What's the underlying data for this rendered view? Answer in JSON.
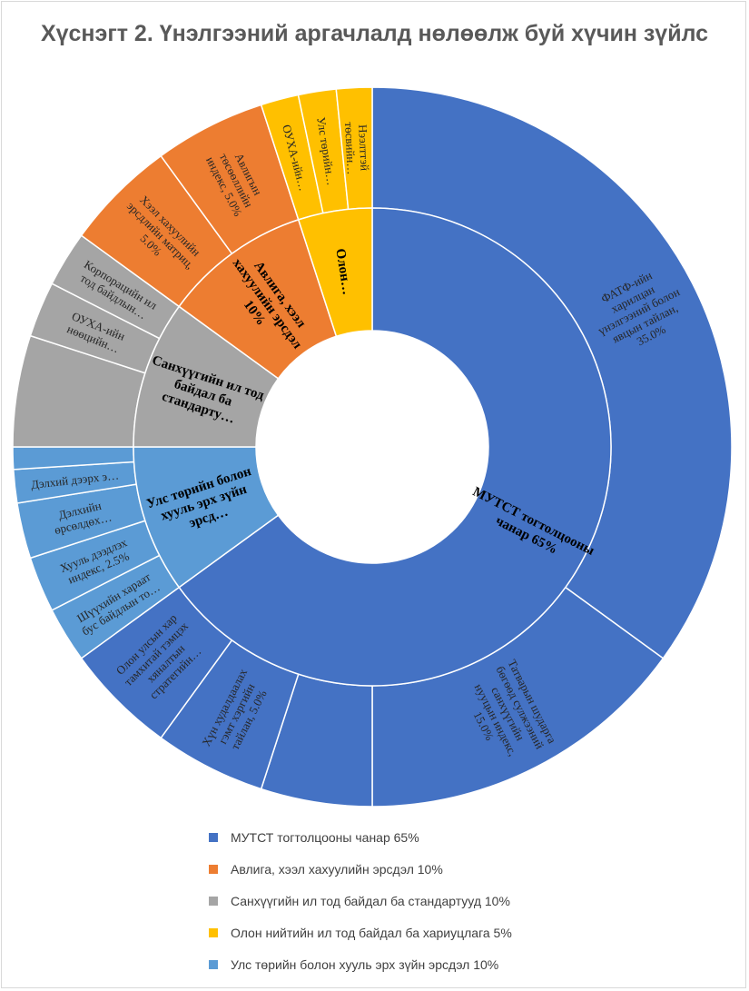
{
  "chart_data": {
    "type": "sunburst",
    "title": "Хүснэгт 2. Үнэлгээний аргачлалд нөлөөлж буй хүчин зүйлс",
    "inner": [
      {
        "label": "МУТСТ тогтолцооны чанар 65%",
        "value": 65,
        "color": "#4472c4"
      },
      {
        "label": "Улс төрийн болон хууль эрх зүйн эрсд…",
        "value": 10,
        "color": "#5b9bd5"
      },
      {
        "label": "Санхүүгийн ил тод байдал ба стандарту…",
        "value": 10,
        "color": "#a5a5a5"
      },
      {
        "label": "Авлига, хээл хахуулийн эрсдэл 10%",
        "value": 10,
        "color": "#ed7d31"
      },
      {
        "label": "Олон…",
        "value": 5,
        "color": "#ffc000"
      }
    ],
    "outer": [
      {
        "label": "ФАТФ-ийн харилцан үнэлгээний болон явцын тайлан, 35.0%",
        "value": 35,
        "color": "#4472c4"
      },
      {
        "label": "Татварын шударга бөгөөд сулжээний санхүүгийн нууцын индекс, 15.0%",
        "value": 15,
        "color": "#4472c4"
      },
      {
        "label": "",
        "value": 5,
        "color": "#4472c4"
      },
      {
        "label": "Хүн худалдаалах гэмт хэргийн тайлан, 5.0%",
        "value": 5,
        "color": "#4472c4"
      },
      {
        "label": "Олон улсын хар тамхитай тэмцэх хяналтын стратегийн…",
        "value": 5,
        "color": "#4472c4"
      },
      {
        "label": "Шүүхийн хараат бус байдлын то…",
        "value": 2.5,
        "color": "#5b9bd5"
      },
      {
        "label": "Хууль дээдлэх индекс, 2.5%",
        "value": 2.5,
        "color": "#5b9bd5"
      },
      {
        "label": "Дэлхийн өрсөлдөх…",
        "value": 2.5,
        "color": "#5b9bd5"
      },
      {
        "label": "Дэлхий дээрх э…",
        "value": 1.5,
        "color": "#5b9bd5"
      },
      {
        "label": "",
        "value": 1,
        "color": "#5b9bd5"
      },
      {
        "label": "",
        "value": 5,
        "color": "#a5a5a5"
      },
      {
        "label": "ОУХА-ийн нөөцийн…",
        "value": 2.5,
        "color": "#a5a5a5"
      },
      {
        "label": "Корпорацийн ил тод байдлын…",
        "value": 2.5,
        "color": "#a5a5a5"
      },
      {
        "label": "Хээл хахуулийн эрсдлийн матриц, 5.0%",
        "value": 5,
        "color": "#ed7d31"
      },
      {
        "label": "Авлигын төсөөллийн индекс, 5.0%",
        "value": 5,
        "color": "#ed7d31"
      },
      {
        "label": "ОУХА-ийн…",
        "value": 1.7,
        "color": "#ffc000"
      },
      {
        "label": "Улс төрийн…",
        "value": 1.7,
        "color": "#ffc000"
      },
      {
        "label": "Нээлттэй төсвийн…",
        "value": 1.6,
        "color": "#ffc000"
      }
    ],
    "legend": [
      {
        "label": "МУТСТ тогтолцооны чанар 65%",
        "color": "#4472c4"
      },
      {
        "label": "Авлига, хээл хахуулийн эрсдэл 10%",
        "color": "#ed7d31"
      },
      {
        "label": "Санхүүгийн ил тод байдал ба стандартууд 10%",
        "color": "#a5a5a5"
      },
      {
        "label": "Олон нийтийн ил тод байдал ба хариуцлага 5%",
        "color": "#ffc000"
      },
      {
        "label": "Улс төрийн болон хууль эрх зүйн эрсдэл 10%",
        "color": "#5b9bd5"
      }
    ],
    "legend_position": "bottom"
  }
}
